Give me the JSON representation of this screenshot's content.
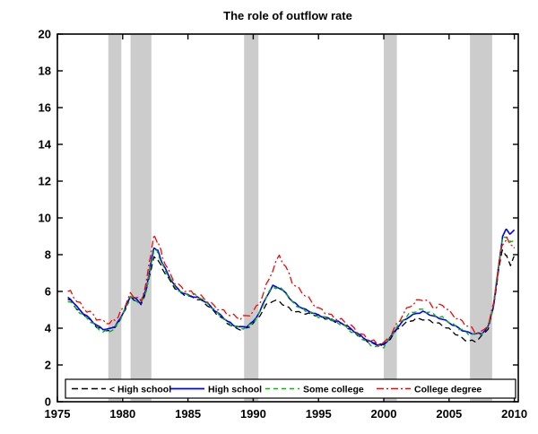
{
  "chart_data": {
    "type": "line",
    "title": "The role of outflow rate",
    "xlabel": "",
    "ylabel": "",
    "xlim": [
      1975,
      2010.3
    ],
    "ylim": [
      0,
      20
    ],
    "xticks": [
      1975,
      1980,
      1985,
      1990,
      1995,
      2000,
      2005,
      2010
    ],
    "yticks": [
      0,
      2,
      4,
      6,
      8,
      10,
      12,
      14,
      16,
      18,
      20
    ],
    "grid": false,
    "legend_position": "bottom-inside-horizontal",
    "band_color": "#cccccc",
    "axis_color": "#000000",
    "recession_bands": [
      [
        1978.9,
        1979.9
      ],
      [
        1980.6,
        1982.2
      ],
      [
        1989.3,
        1990.4
      ],
      [
        2000.0,
        2001.0
      ],
      [
        2006.6,
        2008.3
      ]
    ],
    "x": [
      1975.8,
      1976,
      1976.5,
      1977,
      1977.5,
      1978,
      1978.5,
      1979,
      1979.4,
      1979.8,
      1980.2,
      1980.6,
      1981,
      1981.4,
      1981.8,
      1982.1,
      1982.4,
      1982.7,
      1983,
      1983.5,
      1984,
      1984.5,
      1985,
      1985.5,
      1986,
      1986.5,
      1987,
      1987.5,
      1988,
      1988.5,
      1989,
      1989.5,
      1990,
      1990.5,
      1991,
      1991.5,
      1992,
      1992.5,
      1993,
      1993.5,
      1994,
      1994.5,
      1995,
      1995.5,
      1996,
      1996.5,
      1997,
      1997.5,
      1998,
      1998.5,
      1999,
      1999.5,
      2000,
      2000.5,
      2001,
      2001.5,
      2002,
      2002.5,
      2003,
      2003.5,
      2004,
      2004.5,
      2005,
      2005.5,
      2006,
      2006.5,
      2007,
      2007.5,
      2008,
      2008.4,
      2008.8,
      2009.1,
      2009.4,
      2009.7,
      2010
    ],
    "series": [
      {
        "name": "< High school",
        "color": "#000000",
        "style": "dashed",
        "dash": "7,4",
        "width": 1.3,
        "noise": 0.06,
        "values": [
          5.55,
          5.5,
          5.05,
          4.75,
          4.45,
          4.1,
          3.9,
          3.9,
          4.05,
          4.45,
          5.05,
          5.7,
          5.5,
          5.3,
          6.0,
          7.0,
          7.85,
          7.7,
          7.3,
          6.7,
          6.2,
          5.9,
          5.75,
          5.65,
          5.5,
          5.25,
          4.9,
          4.6,
          4.3,
          4.05,
          3.95,
          4.0,
          4.25,
          4.7,
          5.25,
          5.5,
          5.45,
          5.2,
          4.95,
          4.85,
          4.8,
          4.75,
          4.7,
          4.55,
          4.45,
          4.3,
          4.15,
          3.9,
          3.65,
          3.4,
          3.2,
          3.1,
          3.1,
          3.45,
          3.9,
          4.2,
          4.4,
          4.5,
          4.5,
          4.4,
          4.3,
          4.15,
          3.95,
          3.7,
          3.45,
          3.3,
          3.3,
          3.55,
          4.0,
          5.1,
          7.2,
          8.3,
          7.9,
          7.45,
          7.9
        ]
      },
      {
        "name": "High school",
        "color": "#0000ff",
        "style": "solid",
        "dash": "",
        "width": 1.6,
        "noise": 0.04,
        "values": [
          5.65,
          5.6,
          5.15,
          4.8,
          4.5,
          4.15,
          3.95,
          3.95,
          4.1,
          4.5,
          5.1,
          5.75,
          5.6,
          5.35,
          6.1,
          7.3,
          8.4,
          8.2,
          7.6,
          6.9,
          6.3,
          5.95,
          5.8,
          5.7,
          5.6,
          5.35,
          5.0,
          4.7,
          4.4,
          4.15,
          4.05,
          4.1,
          4.35,
          4.9,
          5.7,
          6.3,
          6.2,
          5.9,
          5.45,
          5.2,
          5.0,
          4.85,
          4.7,
          4.6,
          4.45,
          4.35,
          4.2,
          3.95,
          3.7,
          3.45,
          3.25,
          3.1,
          3.1,
          3.5,
          4.0,
          4.4,
          4.65,
          4.8,
          4.9,
          4.75,
          4.6,
          4.5,
          4.3,
          4.1,
          3.9,
          3.75,
          3.7,
          3.7,
          4.1,
          5.2,
          7.4,
          9.0,
          9.4,
          9.1,
          9.35
        ]
      },
      {
        "name": "Some college",
        "color": "#00bb00",
        "style": "dashed",
        "dash": "5,4",
        "width": 1.4,
        "noise": 0.08,
        "values": [
          5.5,
          5.45,
          5.0,
          4.7,
          4.4,
          4.05,
          3.8,
          3.85,
          4.0,
          4.45,
          5.05,
          5.7,
          5.55,
          5.3,
          6.05,
          7.2,
          8.3,
          8.1,
          7.5,
          6.85,
          6.25,
          5.95,
          5.85,
          5.8,
          5.65,
          5.35,
          5.0,
          4.65,
          4.35,
          4.1,
          4.0,
          4.05,
          4.3,
          4.85,
          5.7,
          6.25,
          6.2,
          5.95,
          5.4,
          5.15,
          4.95,
          4.8,
          4.65,
          4.55,
          4.45,
          4.3,
          4.1,
          3.85,
          3.6,
          3.35,
          3.1,
          2.95,
          3.0,
          3.5,
          4.05,
          4.5,
          4.8,
          4.95,
          5.0,
          4.85,
          4.7,
          4.55,
          4.35,
          4.1,
          3.9,
          3.7,
          3.65,
          3.7,
          4.1,
          5.25,
          7.5,
          8.9,
          9.0,
          8.7,
          8.85
        ]
      },
      {
        "name": "College degree",
        "color": "#ff0000",
        "style": "dash-dot",
        "dash": "8,3,2,3",
        "width": 1.3,
        "noise": 0.11,
        "values": [
          6.0,
          5.95,
          5.5,
          5.1,
          4.85,
          4.55,
          4.35,
          4.3,
          4.45,
          4.8,
          5.3,
          5.85,
          5.7,
          5.5,
          6.4,
          7.9,
          9.0,
          8.7,
          8.0,
          7.1,
          6.5,
          6.2,
          6.0,
          5.85,
          5.7,
          5.5,
          5.2,
          5.0,
          4.8,
          4.65,
          4.55,
          4.65,
          4.9,
          5.4,
          6.3,
          7.2,
          7.95,
          7.3,
          6.5,
          6.1,
          5.8,
          5.4,
          5.05,
          4.9,
          4.65,
          4.5,
          4.35,
          4.1,
          3.8,
          3.55,
          3.35,
          3.15,
          3.15,
          3.6,
          4.2,
          4.8,
          5.2,
          5.45,
          5.6,
          5.35,
          5.1,
          5.3,
          4.9,
          4.6,
          4.35,
          4.1,
          3.8,
          3.75,
          4.2,
          5.3,
          7.3,
          8.6,
          8.85,
          8.6,
          8.35
        ]
      }
    ]
  }
}
